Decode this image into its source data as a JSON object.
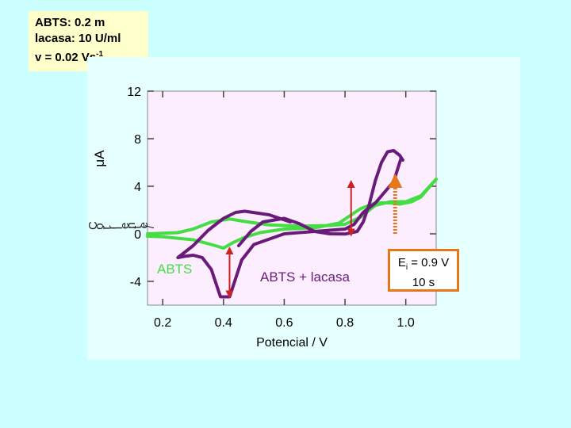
{
  "info": {
    "line1": "ABTS: 0.2 m",
    "line2": "lacasa: 10 U/ml",
    "line3_main": "v = 0.02 Vs",
    "line3_sup": "-1"
  },
  "ei_box": {
    "e": "E",
    "sub": "i",
    "rest": " = 0.9 V",
    "time": "10 s"
  },
  "colors": {
    "background": "#ccffff",
    "plot_bg": "#fdeeff",
    "abts_curve": "#44dd44",
    "lacasa_curve": "#6a1b7a",
    "arrow_red": "#cc2222",
    "arrow_orange": "#e8771a"
  },
  "chart_data": {
    "type": "line",
    "xlabel": "Potencial / V",
    "ylabel_unit": "μA",
    "ylabel_letters": [
      "C",
      "o",
      "r",
      "r",
      "i",
      "e",
      "n",
      "t",
      "e",
      "/"
    ],
    "xlim": [
      0.15,
      1.1
    ],
    "ylim": [
      -6.0,
      12.0
    ],
    "xticks": [
      0.2,
      0.4,
      0.6,
      0.8,
      1.0
    ],
    "xtick_labels": [
      "0.2",
      "0.4",
      "0.6",
      "0.8",
      "1.0"
    ],
    "yticks": [
      -4,
      0,
      4,
      8,
      12
    ],
    "ytick_labels": [
      "-4",
      "0",
      "4",
      "8",
      "12"
    ],
    "annotations": {
      "abts": "ABTS",
      "abts_lacasa": "ABTS + lacasa"
    },
    "series": [
      {
        "name": "ABTS",
        "points": [
          [
            0.15,
            0.0
          ],
          [
            0.25,
            0.1
          ],
          [
            0.3,
            0.4
          ],
          [
            0.36,
            1.0
          ],
          [
            0.42,
            1.25
          ],
          [
            0.48,
            1.0
          ],
          [
            0.55,
            0.75
          ],
          [
            0.65,
            0.65
          ],
          [
            0.75,
            0.7
          ],
          [
            0.8,
            0.8
          ],
          [
            0.85,
            1.4
          ],
          [
            0.9,
            2.4
          ],
          [
            0.95,
            2.7
          ],
          [
            1.0,
            2.7
          ],
          [
            1.05,
            3.2
          ],
          [
            1.1,
            4.6
          ],
          [
            1.08,
            4.0
          ],
          [
            1.05,
            3.1
          ],
          [
            1.02,
            2.7
          ],
          [
            0.98,
            2.5
          ],
          [
            0.95,
            2.6
          ],
          [
            0.9,
            2.6
          ],
          [
            0.85,
            2.1
          ],
          [
            0.78,
            0.9
          ],
          [
            0.7,
            0.5
          ],
          [
            0.6,
            0.4
          ],
          [
            0.52,
            0.1
          ],
          [
            0.47,
            -0.3
          ],
          [
            0.43,
            -0.75
          ],
          [
            0.4,
            -1.2
          ],
          [
            0.36,
            -0.9
          ],
          [
            0.3,
            -0.5
          ],
          [
            0.2,
            -0.25
          ],
          [
            0.15,
            -0.2
          ]
        ]
      },
      {
        "name": "ABTS + lacasa",
        "points": [
          [
            0.45,
            -1.0
          ],
          [
            0.49,
            0.2
          ],
          [
            0.53,
            1.0
          ],
          [
            0.6,
            1.3
          ],
          [
            0.65,
            0.85
          ],
          [
            0.7,
            0.2
          ],
          [
            0.75,
            0.0
          ],
          [
            0.8,
            -0.02
          ],
          [
            0.84,
            0.2
          ],
          [
            0.86,
            1.0
          ],
          [
            0.88,
            2.5
          ],
          [
            0.9,
            4.5
          ],
          [
            0.92,
            6.0
          ],
          [
            0.94,
            6.9
          ],
          [
            0.96,
            7.0
          ],
          [
            0.98,
            6.6
          ],
          [
            0.99,
            6.2
          ],
          [
            0.985,
            6.4
          ],
          [
            0.96,
            4.4
          ],
          [
            0.93,
            3.5
          ],
          [
            0.9,
            2.6
          ],
          [
            0.86,
            1.8
          ],
          [
            0.83,
            0.8
          ],
          [
            0.8,
            0.4
          ],
          [
            0.75,
            0.3
          ],
          [
            0.7,
            0.2
          ],
          [
            0.6,
            0.0
          ],
          [
            0.5,
            -0.9
          ],
          [
            0.46,
            -2.2
          ],
          [
            0.42,
            -5.3
          ],
          [
            0.39,
            -5.3
          ],
          [
            0.36,
            -3.0
          ],
          [
            0.33,
            -2.0
          ],
          [
            0.3,
            -1.8
          ],
          [
            0.27,
            -1.9
          ],
          [
            0.25,
            -2.0
          ],
          [
            0.3,
            -1.0
          ],
          [
            0.35,
            0.3
          ],
          [
            0.4,
            1.3
          ],
          [
            0.44,
            1.8
          ],
          [
            0.47,
            1.9
          ],
          [
            0.55,
            1.6
          ],
          [
            0.62,
            1.0
          ]
        ]
      }
    ],
    "arrows": [
      {
        "type": "double",
        "color_key": "arrow_red",
        "x": 0.82,
        "y_from": -0.1,
        "y_to": 4.4
      },
      {
        "type": "double",
        "color_key": "arrow_red",
        "x": 0.42,
        "y_from": -5.3,
        "y_to": -1.2
      },
      {
        "type": "dotted_up",
        "color_key": "arrow_orange",
        "x": 0.965,
        "y_from": 0.0,
        "y_to": 4.8
      }
    ]
  }
}
